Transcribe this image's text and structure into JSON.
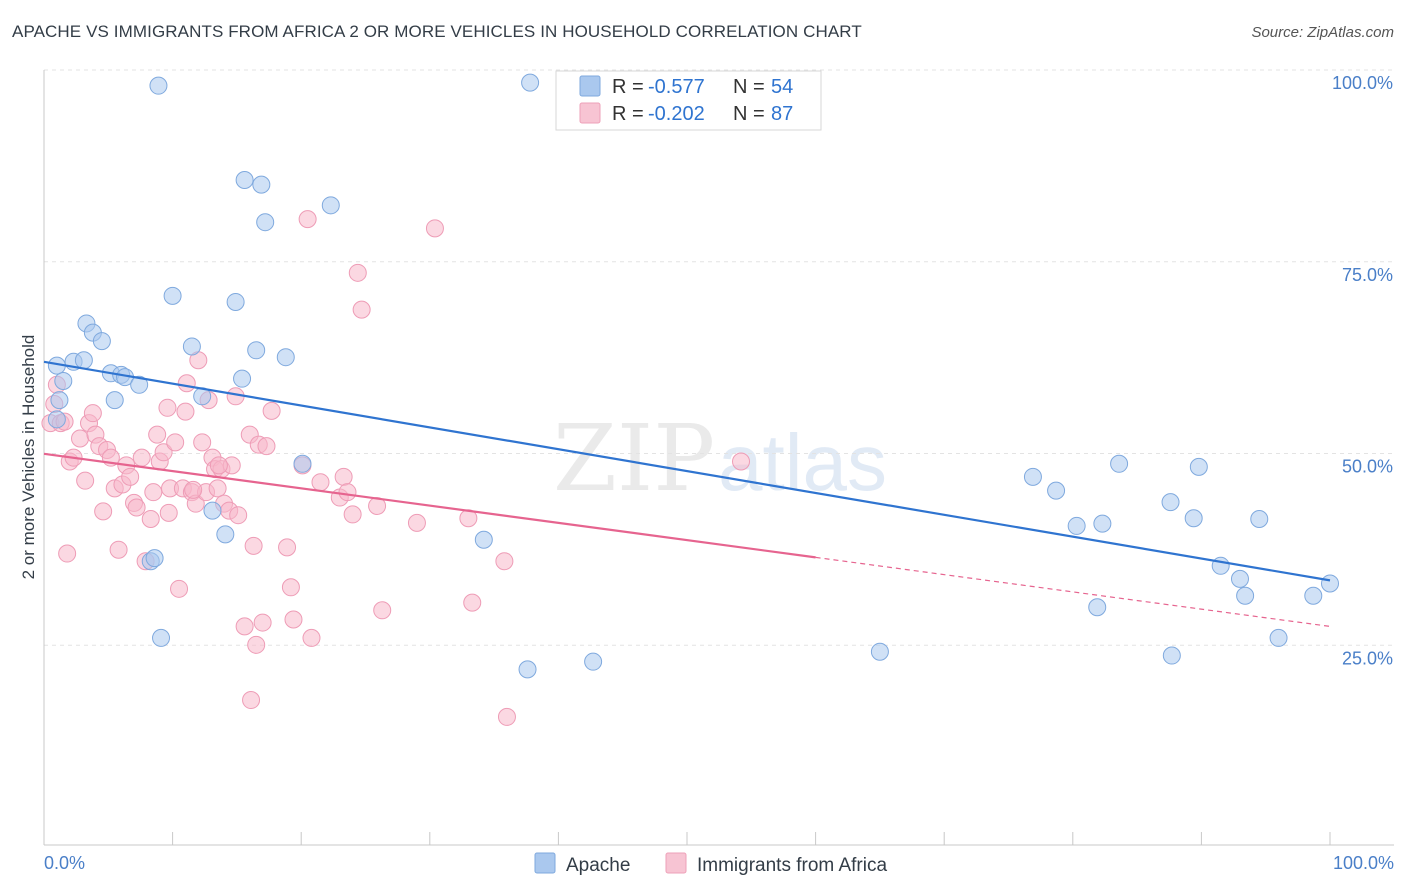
{
  "title": "APACHE VS IMMIGRANTS FROM AFRICA 2 OR MORE VEHICLES IN HOUSEHOLD CORRELATION CHART",
  "source": "Source: ZipAtlas.com",
  "watermark": {
    "zip": "ZIP",
    "atlas": "atlas"
  },
  "colors": {
    "apache_fill": "#aac8ee",
    "apache_line": "#2f74d0",
    "africa_fill": "#f7b8cb",
    "africa_line": "#e6648f",
    "tick_text": "#4a7fc8"
  },
  "legend_top": [
    {
      "r_label": "R =",
      "r_value": "-0.577",
      "n_label": "N =",
      "n_value": "54"
    },
    {
      "r_label": "R =",
      "r_value": "-0.202",
      "n_label": "N =",
      "n_value": "87"
    }
  ],
  "chart_data": {
    "type": "scatter",
    "title": "APACHE VS IMMIGRANTS FROM AFRICA 2 OR MORE VEHICLES IN HOUSEHOLD CORRELATION CHART",
    "xlabel": "",
    "ylabel": "2 or more Vehicles in Household",
    "xlim": [
      0,
      100
    ],
    "ylim": [
      0,
      100
    ],
    "x_tick_labels": [
      "0.0%",
      "100.0%"
    ],
    "y_ticks": [
      25,
      50,
      75,
      100
    ],
    "y_tick_labels": [
      "25.0%",
      "50.0%",
      "75.0%",
      "100.0%"
    ],
    "grid": true,
    "legend_position": "bottom-center",
    "series": [
      {
        "name": "Apache",
        "r": -0.577,
        "n": 54,
        "trend": {
          "x": [
            0,
            100
          ],
          "y": [
            63.0,
            34.5
          ],
          "solid_until": 100
        },
        "points": [
          [
            1.0,
            55.5
          ],
          [
            1.2,
            58.0
          ],
          [
            1.0,
            62.5
          ],
          [
            1.5,
            60.5
          ],
          [
            2.3,
            63.0
          ],
          [
            3.1,
            63.2
          ],
          [
            3.3,
            68.0
          ],
          [
            3.8,
            66.8
          ],
          [
            4.5,
            65.7
          ],
          [
            5.2,
            61.5
          ],
          [
            5.5,
            58.0
          ],
          [
            6.0,
            61.3
          ],
          [
            6.3,
            61.0
          ],
          [
            7.4,
            60.0
          ],
          [
            8.3,
            37.0
          ],
          [
            8.6,
            37.4
          ],
          [
            9.1,
            27.0
          ],
          [
            8.9,
            99.0
          ],
          [
            10.0,
            71.6
          ],
          [
            11.5,
            65.0
          ],
          [
            12.3,
            58.5
          ],
          [
            13.1,
            43.6
          ],
          [
            14.1,
            40.5
          ],
          [
            14.9,
            70.8
          ],
          [
            15.4,
            60.8
          ],
          [
            15.6,
            86.7
          ],
          [
            16.5,
            64.5
          ],
          [
            16.9,
            86.1
          ],
          [
            17.2,
            81.2
          ],
          [
            18.8,
            63.6
          ],
          [
            20.1,
            49.7
          ],
          [
            22.3,
            83.4
          ],
          [
            34.2,
            39.8
          ],
          [
            37.6,
            22.9
          ],
          [
            37.8,
            99.4
          ],
          [
            42.7,
            23.9
          ],
          [
            65.0,
            25.2
          ],
          [
            76.9,
            48.0
          ],
          [
            78.7,
            46.2
          ],
          [
            80.3,
            41.6
          ],
          [
            81.9,
            31.0
          ],
          [
            82.3,
            41.9
          ],
          [
            83.6,
            49.7
          ],
          [
            87.6,
            44.7
          ],
          [
            87.7,
            24.7
          ],
          [
            89.4,
            42.6
          ],
          [
            89.8,
            49.3
          ],
          [
            91.5,
            36.4
          ],
          [
            93.0,
            34.7
          ],
          [
            93.4,
            32.5
          ],
          [
            94.5,
            42.5
          ],
          [
            96.0,
            27.0
          ],
          [
            98.7,
            32.5
          ],
          [
            100.0,
            34.1
          ]
        ]
      },
      {
        "name": "Immigrants from Africa",
        "r": -0.202,
        "n": 87,
        "trend": {
          "x": [
            0,
            100
          ],
          "y": [
            51.0,
            28.5
          ],
          "solid_until": 60
        },
        "points": [
          [
            0.5,
            55.0
          ],
          [
            0.8,
            57.5
          ],
          [
            1.0,
            60.0
          ],
          [
            1.3,
            55.0
          ],
          [
            1.6,
            55.2
          ],
          [
            1.8,
            38.0
          ],
          [
            2.0,
            50.0
          ],
          [
            2.3,
            50.5
          ],
          [
            2.8,
            53.0
          ],
          [
            3.2,
            47.5
          ],
          [
            3.5,
            55.0
          ],
          [
            3.8,
            56.3
          ],
          [
            4.0,
            53.5
          ],
          [
            4.3,
            52.0
          ],
          [
            4.6,
            43.5
          ],
          [
            4.9,
            51.5
          ],
          [
            5.2,
            50.5
          ],
          [
            5.5,
            46.5
          ],
          [
            5.8,
            38.5
          ],
          [
            6.1,
            47.0
          ],
          [
            6.4,
            49.5
          ],
          [
            6.7,
            48.0
          ],
          [
            7.0,
            44.6
          ],
          [
            7.2,
            44.0
          ],
          [
            7.6,
            50.5
          ],
          [
            7.9,
            37.0
          ],
          [
            8.3,
            42.5
          ],
          [
            8.5,
            46.0
          ],
          [
            8.8,
            53.5
          ],
          [
            9.0,
            50.0
          ],
          [
            9.3,
            51.2
          ],
          [
            9.6,
            57.0
          ],
          [
            9.8,
            46.5
          ],
          [
            10.2,
            52.5
          ],
          [
            10.5,
            33.4
          ],
          [
            10.8,
            46.5
          ],
          [
            11.1,
            60.2
          ],
          [
            11.0,
            56.5
          ],
          [
            11.5,
            46.0
          ],
          [
            11.8,
            44.5
          ],
          [
            12.0,
            63.2
          ],
          [
            12.3,
            52.5
          ],
          [
            12.6,
            46.0
          ],
          [
            12.8,
            58.0
          ],
          [
            13.1,
            50.5
          ],
          [
            13.3,
            49.0
          ],
          [
            13.5,
            46.5
          ],
          [
            13.8,
            49.0
          ],
          [
            14.0,
            44.5
          ],
          [
            14.4,
            43.6
          ],
          [
            14.6,
            49.5
          ],
          [
            14.9,
            58.5
          ],
          [
            15.1,
            43.0
          ],
          [
            15.6,
            28.5
          ],
          [
            16.0,
            53.5
          ],
          [
            16.3,
            39.0
          ],
          [
            16.5,
            26.1
          ],
          [
            16.7,
            52.2
          ],
          [
            17.0,
            29.0
          ],
          [
            17.3,
            52.0
          ],
          [
            17.7,
            56.6
          ],
          [
            18.9,
            38.8
          ],
          [
            19.2,
            33.6
          ],
          [
            19.4,
            29.4
          ],
          [
            20.1,
            49.5
          ],
          [
            20.5,
            81.6
          ],
          [
            20.8,
            27.0
          ],
          [
            21.5,
            47.3
          ],
          [
            23.0,
            45.3
          ],
          [
            23.3,
            48.0
          ],
          [
            23.6,
            46.0
          ],
          [
            24.0,
            43.1
          ],
          [
            24.4,
            74.6
          ],
          [
            24.7,
            69.8
          ],
          [
            25.9,
            44.2
          ],
          [
            26.3,
            30.6
          ],
          [
            29.0,
            42.0
          ],
          [
            30.4,
            80.4
          ],
          [
            33.0,
            42.6
          ],
          [
            33.3,
            31.6
          ],
          [
            35.8,
            37.0
          ],
          [
            36.0,
            16.7
          ],
          [
            54.2,
            50.0
          ],
          [
            13.6,
            49.5
          ],
          [
            11.6,
            46.3
          ],
          [
            16.1,
            18.9
          ],
          [
            9.7,
            43.3
          ]
        ]
      }
    ]
  }
}
